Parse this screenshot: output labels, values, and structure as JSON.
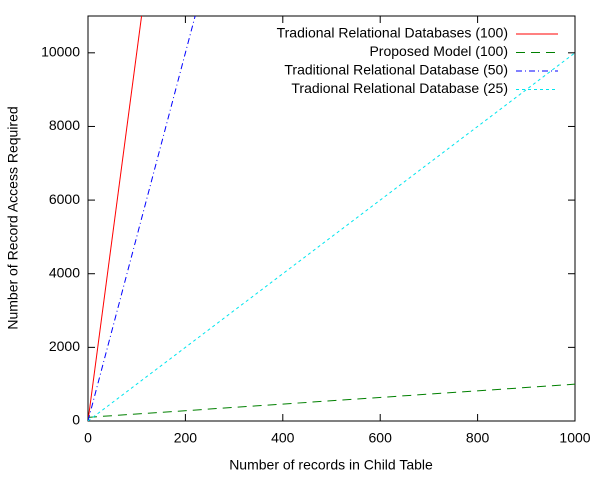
{
  "chart_data": {
    "type": "line",
    "xlabel": "Number of records in Child Table",
    "ylabel": "Number of Record Access Required",
    "xlim": [
      0,
      1000
    ],
    "ylim": [
      0,
      11000
    ],
    "xticks": [
      0,
      200,
      400,
      600,
      800,
      1000
    ],
    "yticks": [
      0,
      2000,
      4000,
      6000,
      8000,
      10000
    ],
    "legend": "top-right",
    "series": [
      {
        "name": "Tradional Relational Databases (100)",
        "color": "#ff0000",
        "dash": "none",
        "x": [
          0,
          110
        ],
        "values": [
          0,
          11000
        ]
      },
      {
        "name": "Proposed Model (100)",
        "color": "#008000",
        "dash": "9,6",
        "x": [
          0,
          1000
        ],
        "values": [
          100,
          1000
        ]
      },
      {
        "name": "Traditional Relational Database (50)",
        "color": "#0000ff",
        "dash": "6,3,1,3",
        "x": [
          0,
          220
        ],
        "values": [
          0,
          11000
        ]
      },
      {
        "name": "Tradional Relational Database (25)",
        "color": "#00e5ee",
        "dash": "3,3",
        "x": [
          0,
          1000
        ],
        "values": [
          0,
          10000
        ]
      }
    ]
  }
}
